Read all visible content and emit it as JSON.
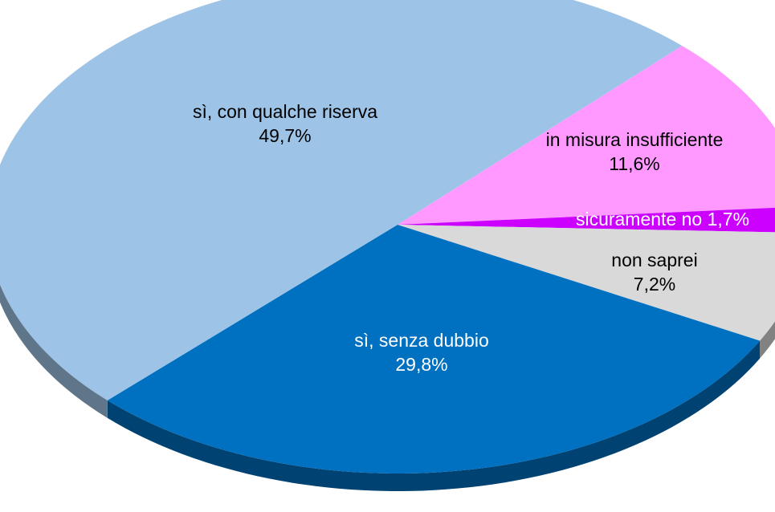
{
  "chart_data": {
    "type": "pie",
    "categories": [
      "in misura insufficiente",
      "sicuramente no",
      "non saprei",
      "sì, senza dubbio",
      "sì, con qualche riserva"
    ],
    "values": [
      11.6,
      1.7,
      7.2,
      29.8,
      49.7
    ],
    "value_labels": [
      "11,6%",
      "1,7%",
      "7,2%",
      "29,8%",
      "49,7%"
    ],
    "colors": [
      "#ff99ff",
      "#cc00ff",
      "#d9d9d9",
      "#0070c0",
      "#9dc3e6"
    ]
  }
}
